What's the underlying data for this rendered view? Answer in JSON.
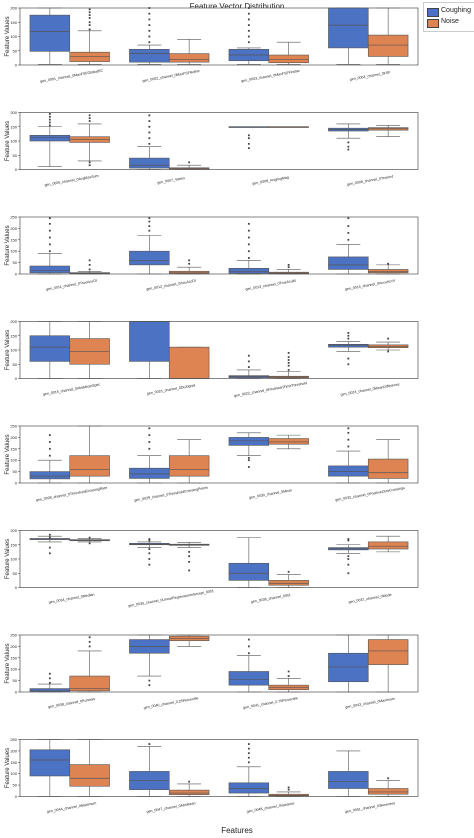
{
  "figure": {
    "title": "Feature Vector Distribution",
    "xlabel": "Features",
    "ylabel": "Feature Values",
    "legend": [
      {
        "name": "Coughing",
        "color": "#4c72c4"
      },
      {
        "name": "Noise",
        "color": "#dd8452"
      }
    ]
  },
  "chart_data": [
    {
      "type": "box",
      "ylim": [
        0,
        200
      ],
      "yticks": [
        0,
        50,
        100,
        150,
        200
      ],
      "categories": [
        "gen_0001_channel_0MaxFSFGlobalDC",
        "gen_0002_channel_0MaxFSFNotNc",
        "gen_0003_channel_0MaxFSFFirstNc",
        "gen_0004_channel_0FSF"
      ],
      "series": [
        {
          "name": "Coughing",
          "boxes": [
            [
              2,
              48,
              118,
              175,
              200
            ],
            [
              2,
              10,
              40,
              55,
              70
            ],
            [
              2,
              15,
              35,
              55,
              60
            ],
            [
              2,
              60,
              140,
              200,
              200
            ]
          ],
          "outliers": [
            [],
            [
              80,
              100,
              120,
              140,
              160,
              180,
              200
            ],
            [
              80,
              100,
              120,
              140,
              160,
              180,
              200
            ],
            []
          ]
        },
        {
          "name": "Noise",
          "boxes": [
            [
              2,
              12,
              30,
              45,
              120
            ],
            [
              2,
              10,
              20,
              40,
              90
            ],
            [
              2,
              8,
              20,
              35,
              80
            ],
            [
              2,
              30,
              70,
              105,
              200
            ]
          ],
          "outliers": [
            [
              125,
              140,
              150,
              165,
              175,
              185,
              195
            ],
            [],
            [],
            []
          ]
        }
      ]
    },
    {
      "type": "box",
      "ylim": [
        0,
        200
      ],
      "yticks": [
        0,
        50,
        100,
        150,
        200
      ],
      "categories": [
        "gen_0005_channel_0AvgMaxSum",
        "gen_0007_Varies",
        "gen_0008_AnglingMag",
        "gen_0009_channel_0TrueInd"
      ],
      "series": [
        {
          "name": "Coughing",
          "boxes": [
            [
              10,
              100,
              112,
              120,
              150
            ],
            [
              0,
              5,
              15,
              40,
              80
            ],
            [
              150,
              150,
              150,
              150,
              150
            ],
            [
              110,
              135,
              140,
              145,
              160
            ]
          ],
          "outliers": [
            [
              155,
              165,
              175,
              185,
              195
            ],
            [
              90,
              110,
              130,
              150,
              170,
              190
            ],
            [
              75,
              90,
              110,
              120
            ],
            [
              70,
              80,
              95
            ]
          ]
        },
        {
          "name": "Noise",
          "boxes": [
            [
              30,
              95,
              105,
              115,
              160
            ],
            [
              0,
              1,
              3,
              6,
              15
            ],
            [
              150,
              150,
              150,
              150,
              150
            ],
            [
              115,
              138,
              143,
              147,
              155
            ]
          ],
          "outliers": [
            [
              15,
              25,
              170,
              180,
              190
            ],
            [
              25
            ],
            [],
            []
          ]
        }
      ]
    },
    {
      "type": "box",
      "ylim": [
        0,
        250
      ],
      "yticks": [
        0,
        50,
        100,
        150,
        200,
        250
      ],
      "categories": [
        "gen_0011_channel_0TrueAcuOI",
        "gen_0012_channel_0AcuAccDI",
        "gen_0013_channel_0TrueAcuM",
        "gen_0014_channel_0AccuAccV"
      ],
      "series": [
        {
          "name": "Coughing",
          "boxes": [
            [
              0,
              5,
              15,
              35,
              90
            ],
            [
              0,
              40,
              60,
              100,
              170
            ],
            [
              0,
              3,
              10,
              25,
              60
            ],
            [
              0,
              20,
              40,
              75,
              130
            ]
          ],
          "outliers": [
            [
              100,
              130,
              160,
              190,
              220,
              245
            ],
            [
              190,
              210,
              230,
              245
            ],
            [
              70,
              100,
              130,
              160,
              190,
              220
            ],
            [
              150,
              180,
              210,
              245
            ]
          ]
        },
        {
          "name": "Noise",
          "boxes": [
            [
              0,
              1,
              3,
              6,
              12
            ],
            [
              0,
              2,
              5,
              12,
              30
            ],
            [
              0,
              1,
              4,
              8,
              20
            ],
            [
              0,
              5,
              10,
              20,
              40
            ]
          ],
          "outliers": [
            [
              20,
              40,
              60
            ],
            [
              45,
              60
            ],
            [
              30,
              40
            ],
            [
              45
            ]
          ]
        }
      ]
    },
    {
      "type": "box",
      "ylim": [
        0,
        200
      ],
      "yticks": [
        0,
        50,
        100,
        150,
        200
      ],
      "categories": [
        "gen_0015_channel_0AbsMeanSpec",
        "gen_0016_channel_0DuSignal",
        "gen_0022_channel_0FirstHeartTimeThreshold",
        "gen_0023_channel_0MeanDifference"
      ],
      "series": [
        {
          "name": "Coughing",
          "boxes": [
            [
              0,
              60,
              110,
              150,
              200
            ],
            [
              0,
              60,
              200,
              200,
              200
            ],
            [
              0,
              3,
              7,
              10,
              30
            ],
            [
              95,
              110,
              117,
              120,
              130
            ]
          ],
          "outliers": [
            [],
            [],
            [
              40,
              60,
              80
            ],
            [
              50,
              70,
              140,
              150,
              160
            ]
          ]
        },
        {
          "name": "Noise",
          "boxes": [
            [
              0,
              50,
              95,
              140,
              200
            ],
            [
              0,
              0,
              0,
              110,
              110
            ],
            [
              0,
              2,
              5,
              8,
              25
            ],
            [
              100,
              108,
              113,
              118,
              128
            ]
          ],
          "outliers": [
            [],
            [],
            [
              30,
              45,
              55,
              65,
              75,
              90
            ],
            [
              95,
              140
            ]
          ]
        }
      ]
    },
    {
      "type": "box",
      "ylim": [
        0,
        250
      ],
      "yticks": [
        0,
        50,
        100,
        150,
        200,
        250
      ],
      "categories": [
        "gen_0028_channel_0ThresholdCrossingRate",
        "gen_0029_channel_0ThresholdCrossingPoints",
        "gen_0030_channel_0Mean",
        "gen_0032_channel_0PositiveZeroCrossings"
      ],
      "series": [
        {
          "name": "Coughing",
          "boxes": [
            [
              0,
              18,
              30,
              50,
              100
            ],
            [
              0,
              20,
              40,
              65,
              120
            ],
            [
              120,
              165,
              185,
              200,
              220
            ],
            [
              0,
              30,
              50,
              75,
              140
            ]
          ],
          "outliers": [
            [
              120,
              150,
              180,
              210
            ],
            [
              150,
              180,
              210,
              240
            ],
            [
              70,
              100,
              110
            ],
            [
              160,
              190,
              220,
              240
            ]
          ]
        },
        {
          "name": "Noise",
          "boxes": [
            [
              0,
              30,
              60,
              120,
              250
            ],
            [
              0,
              30,
              60,
              120,
              190
            ],
            [
              150,
              170,
              180,
              195,
              210
            ],
            [
              0,
              20,
              45,
              105,
              190
            ]
          ],
          "outliers": [
            [],
            [],
            [],
            []
          ]
        }
      ]
    },
    {
      "type": "box",
      "ylim": [
        0,
        200
      ],
      "yticks": [
        0,
        50,
        100,
        150,
        200
      ],
      "categories": [
        "gen_0034_channel_0Median",
        "gen_0035_channel_0LinearRegressionIntercept_0001",
        "gen_0036_channel_0Std",
        "gen_0037_channel_0Mode"
      ],
      "series": [
        {
          "name": "Coughing",
          "boxes": [
            [
              160,
              168,
              170,
              172,
              180
            ],
            [
              140,
              150,
              152,
              155,
              160
            ],
            [
              0,
              25,
              50,
              85,
              175
            ],
            [
              120,
              132,
              136,
              140,
              150
            ]
          ],
          "outliers": [
            [
              120,
              140,
              175,
              185
            ],
            [
              80,
              100,
              120,
              135,
              165,
              170
            ],
            [],
            [
              50,
              80,
              100,
              110,
              165,
              170
            ]
          ]
        },
        {
          "name": "Noise",
          "boxes": [
            [
              160,
              164,
              166,
              168,
              172
            ],
            [
              140,
              148,
              150,
              152,
              158
            ],
            [
              0,
              8,
              15,
              25,
              45
            ],
            [
              125,
              135,
              145,
              160,
              180
            ]
          ],
          "outliers": [
            [
              155,
              175
            ],
            [
              60,
              90,
              110,
              125
            ],
            [
              55
            ],
            []
          ]
        }
      ]
    },
    {
      "type": "box",
      "ylim": [
        0,
        250
      ],
      "yticks": [
        0,
        50,
        100,
        150,
        200,
        250
      ],
      "categories": [
        "gen_0038_channel_0Kurtosis",
        "gen_0040_channel_0.25Percentile",
        "gen_0041_channel_0.75Percentile",
        "gen_0043_channel_0Maximum"
      ],
      "series": [
        {
          "name": "Coughing",
          "boxes": [
            [
              0,
              2,
              8,
              15,
              35
            ],
            [
              70,
              170,
              200,
              230,
              250
            ],
            [
              0,
              30,
              55,
              90,
              160
            ],
            [
              0,
              45,
              110,
              170,
              250
            ]
          ],
          "outliers": [
            [
              40,
              60,
              80
            ],
            [
              30,
              50
            ],
            [
              170,
              200,
              230
            ],
            []
          ]
        },
        {
          "name": "Noise",
          "boxes": [
            [
              0,
              5,
              15,
              70,
              180
            ],
            [
              200,
              225,
              235,
              245,
              250
            ],
            [
              0,
              10,
              20,
              30,
              60
            ],
            [
              0,
              120,
              180,
              230,
              250
            ]
          ],
          "outliers": [
            [
              200,
              220,
              240
            ],
            [],
            [
              70,
              90
            ],
            []
          ]
        }
      ]
    },
    {
      "type": "box",
      "ylim": [
        0,
        250
      ],
      "yticks": [
        0,
        50,
        100,
        150,
        200,
        250
      ],
      "categories": [
        "gen_0044_channel_0Maximum",
        "gen_0047_channel_0AbsMean",
        "gen_0048_channel_0Variance",
        "gen_0051_channel_0Skewness"
      ],
      "series": [
        {
          "name": "Coughing",
          "boxes": [
            [
              0,
              90,
              160,
              205,
              250
            ],
            [
              0,
              30,
              70,
              110,
              220
            ],
            [
              0,
              15,
              35,
              60,
              130
            ],
            [
              0,
              35,
              65,
              110,
              200
            ]
          ],
          "outliers": [
            [],
            [
              230
            ],
            [
              150,
              170,
              190,
              210,
              230
            ],
            []
          ]
        },
        {
          "name": "Noise",
          "boxes": [
            [
              0,
              45,
              80,
              140,
              250
            ],
            [
              0,
              8,
              15,
              28,
              55
            ],
            [
              0,
              2,
              5,
              10,
              20
            ],
            [
              0,
              10,
              20,
              35,
              70
            ]
          ],
          "outliers": [
            [],
            [
              65
            ],
            [
              30,
              40
            ],
            [
              80
            ]
          ]
        }
      ]
    }
  ]
}
